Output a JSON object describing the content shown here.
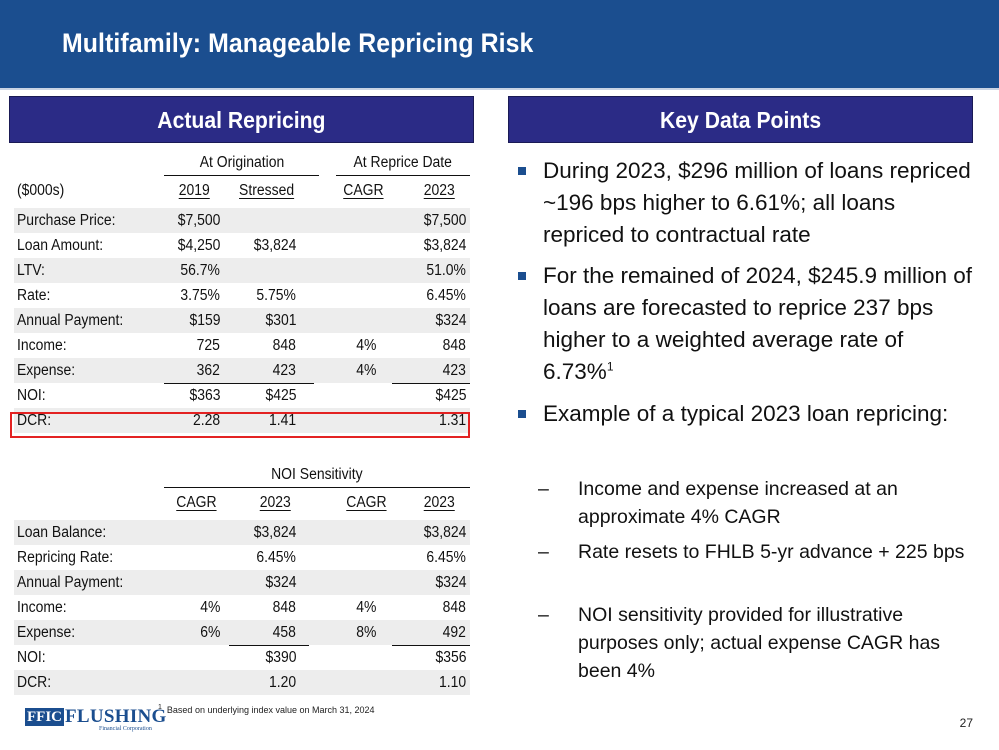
{
  "header": {
    "title": "Multifamily: Manageable Repricing Risk"
  },
  "left_panel": {
    "title": "Actual Repricing",
    "group_headers": [
      "At Origination",
      "At Reprice Date"
    ],
    "column_headers": [
      "($000s)",
      "2019",
      "Stressed",
      "CAGR",
      "2023"
    ],
    "rows": [
      {
        "label": "Purchase Price:",
        "v1": "$7,500",
        "v2": "",
        "v3": "",
        "v4": "$7,500"
      },
      {
        "label": "Loan Amount:",
        "v1": "$4,250",
        "v2": "$3,824",
        "v3": "",
        "v4": "$3,824"
      },
      {
        "label": "LTV:",
        "v1": "56.7%",
        "v2": "",
        "v3": "",
        "v4": "51.0%"
      },
      {
        "label": "Rate:",
        "v1": "3.75%",
        "v2": "5.75%",
        "v3": "",
        "v4": "6.45%"
      },
      {
        "label": "Annual Payment:",
        "v1": "$159",
        "v2": "$301",
        "v3": "",
        "v4": "$324"
      },
      {
        "label": "Income:",
        "v1": "725",
        "v2": "848",
        "v3": "4%",
        "v4": "848"
      },
      {
        "label": "Expense:",
        "v1": "362",
        "v2": "423",
        "v3": "4%",
        "v4": "423"
      },
      {
        "label": "NOI:",
        "v1": "$363",
        "v2": "$425",
        "v3": "",
        "v4": "$425"
      },
      {
        "label": "DCR:",
        "v1": "2.28",
        "v2": "1.41",
        "v3": "",
        "v4": "1.31"
      }
    ]
  },
  "sensitivity": {
    "group_header": "NOI Sensitivity",
    "column_headers": [
      "CAGR",
      "2023",
      "CAGR",
      "2023"
    ],
    "rows": [
      {
        "label": "Loan Balance:",
        "v1": "",
        "v2": "$3,824",
        "v3": "",
        "v4": "$3,824"
      },
      {
        "label": "Repricing Rate:",
        "v1": "",
        "v2": "6.45%",
        "v3": "",
        "v4": "6.45%"
      },
      {
        "label": "Annual Payment:",
        "v1": "",
        "v2": "$324",
        "v3": "",
        "v4": "$324"
      },
      {
        "label": "Income:",
        "v1": "4%",
        "v2": "848",
        "v3": "4%",
        "v4": "848"
      },
      {
        "label": "Expense:",
        "v1": "6%",
        "v2": "458",
        "v3": "8%",
        "v4": "492"
      },
      {
        "label": "NOI:",
        "v1": "",
        "v2": "$390",
        "v3": "",
        "v4": "$356"
      },
      {
        "label": "DCR:",
        "v1": "",
        "v2": "1.20",
        "v3": "",
        "v4": "1.10"
      }
    ]
  },
  "right_panel": {
    "title": "Key Data Points",
    "bullets": [
      "During 2023, $296 million of loans repriced ~196 bps higher to 6.61%; all loans repriced to contractual rate",
      "For the remained of 2024, $245.9 million of loans are forecasted to reprice 237 bps higher to a weighted average rate of 6.73%",
      "Example of a typical 2023 loan repricing:"
    ],
    "bullet2_footnote_marker": "1",
    "sub_bullets": [
      "Income and expense increased at an approximate 4% CAGR",
      "Rate resets to FHLB 5-yr advance + 225 bps",
      "NOI sensitivity provided for illustrative purposes only; actual expense CAGR has been 4%"
    ]
  },
  "footer": {
    "logo_ticker": "FFIC",
    "logo_name": "FLUSHING",
    "logo_sub": "Financial Corporation",
    "footnote_marker": "1",
    "footnote": "Based on underlying index value on March 31, 2024",
    "page_number": "27"
  },
  "colors": {
    "title_bar": "#1b4e8f",
    "section_header": "#2b2b86",
    "highlight_box": "#e32222",
    "row_shading": "#ededed"
  }
}
